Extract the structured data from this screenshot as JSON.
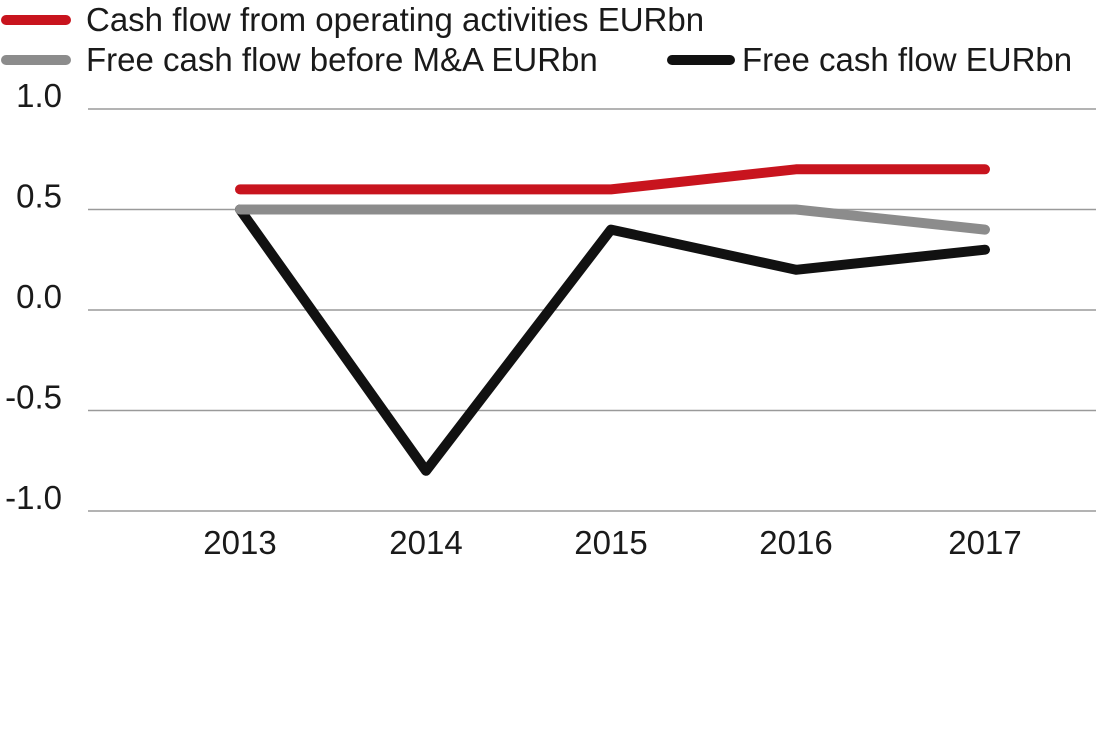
{
  "chart_data": {
    "type": "line",
    "title": "",
    "xlabel": "",
    "ylabel": "",
    "categories": [
      "2013",
      "2014",
      "2015",
      "2016",
      "2017"
    ],
    "ylim": [
      -1.0,
      1.0
    ],
    "yticks": [
      1.0,
      0.5,
      0.0,
      -0.5,
      -1.0
    ],
    "ytick_labels": [
      "1.0",
      "0.5",
      "0.0",
      "-0.5",
      "-1.0"
    ],
    "grid": "horizontal",
    "legend_position": "top",
    "series": [
      {
        "name": "Cash flow from operating activities EURbn",
        "color": "#c8141e",
        "values": [
          0.6,
          0.6,
          0.6,
          0.7,
          0.7
        ]
      },
      {
        "name": "Free cash flow before M&A EURbn",
        "color": "#8c8c8c",
        "values": [
          0.5,
          0.5,
          0.5,
          0.5,
          0.4
        ]
      },
      {
        "name": "Free cash flow EURbn",
        "color": "#111111",
        "values": [
          0.5,
          -0.8,
          0.4,
          0.2,
          0.3
        ]
      }
    ]
  }
}
